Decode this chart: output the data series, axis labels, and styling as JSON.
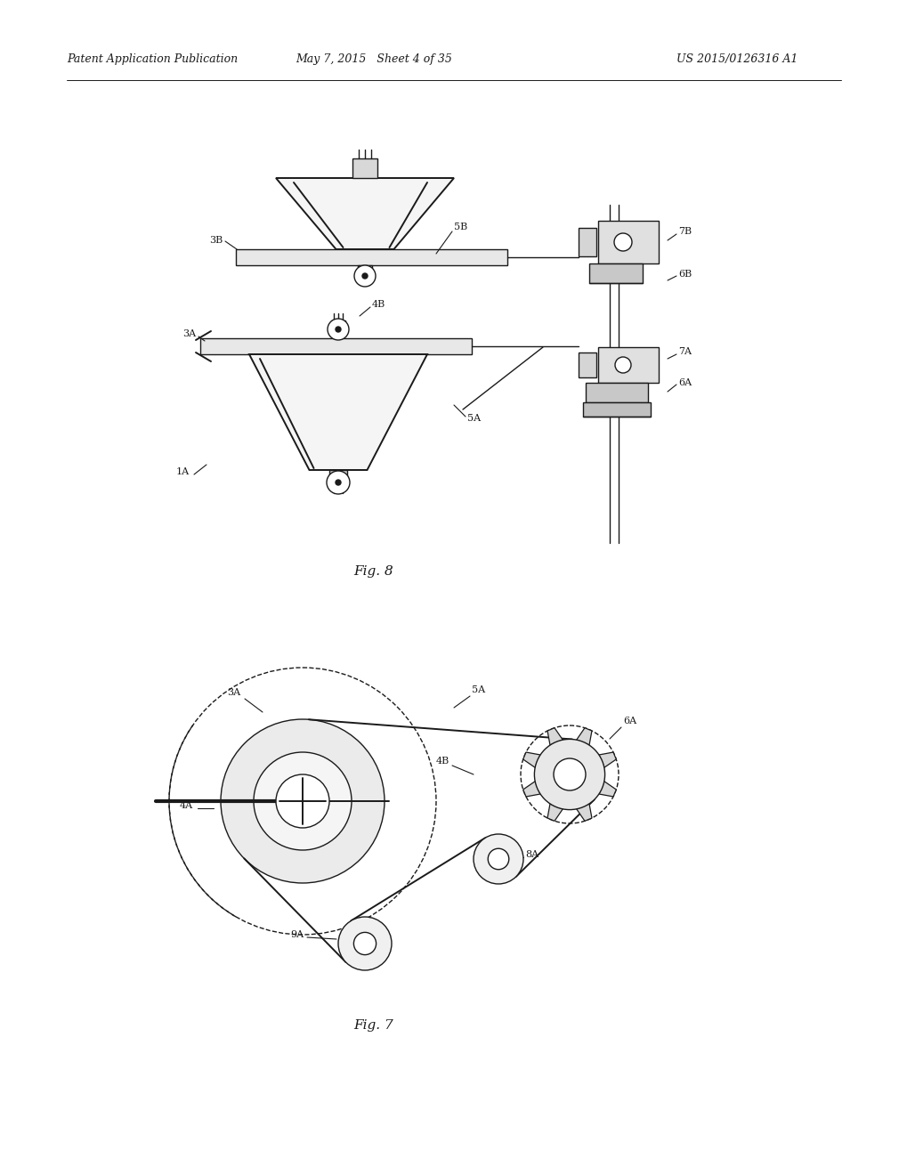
{
  "bg_color": "#ffffff",
  "line_color": "#1a1a1a",
  "header_left": "Patent Application Publication",
  "header_mid": "May 7, 2015   Sheet 4 of 35",
  "header_right": "US 2015/0126316 A1",
  "fig8_caption": "Fig. 8",
  "fig7_caption": "Fig. 7"
}
